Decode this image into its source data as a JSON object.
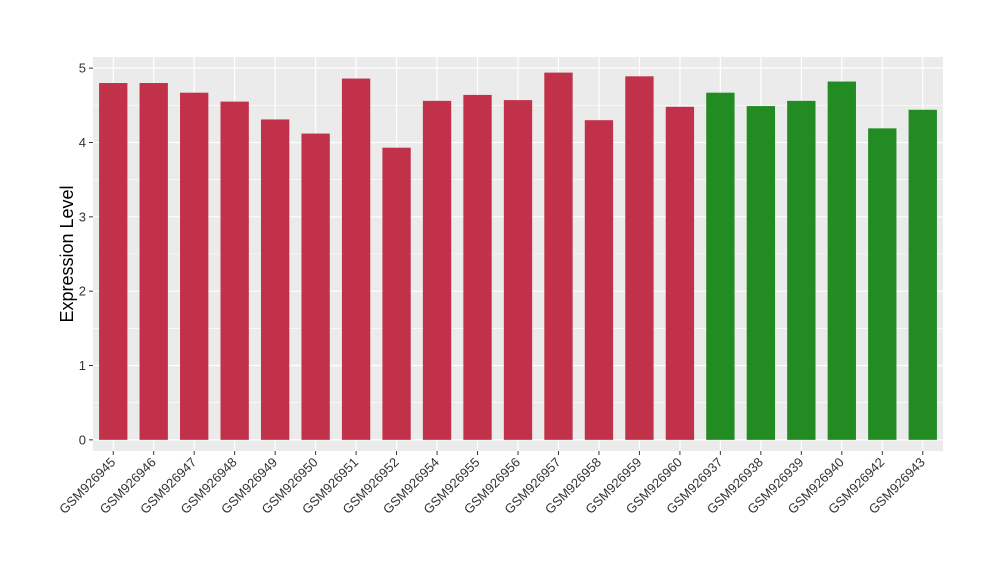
{
  "chart_data": {
    "type": "bar",
    "title": "",
    "xlabel": "",
    "ylabel": "Expression Level",
    "ylim": [
      -0.15,
      5.15
    ],
    "yticks": [
      0,
      1,
      2,
      3,
      4,
      5
    ],
    "grid": true,
    "legend": "none",
    "colors": {
      "panel_background": "#ebebeb",
      "grid": "#ffffff",
      "group_a": "#c2314a",
      "group_b": "#228b22"
    },
    "categories": [
      "GSM926945",
      "GSM926946",
      "GSM926947",
      "GSM926948",
      "GSM926949",
      "GSM926950",
      "GSM926951",
      "GSM926952",
      "GSM926954",
      "GSM926955",
      "GSM926956",
      "GSM926957",
      "GSM926958",
      "GSM926959",
      "GSM926960",
      "GSM926937",
      "GSM926938",
      "GSM926939",
      "GSM926940",
      "GSM926942",
      "GSM926943"
    ],
    "values": [
      4.8,
      4.8,
      4.67,
      4.55,
      4.31,
      4.12,
      4.86,
      3.93,
      4.56,
      4.64,
      4.57,
      4.94,
      4.3,
      4.89,
      4.48,
      4.67,
      4.49,
      4.56,
      4.82,
      4.19,
      4.44
    ],
    "bar_colors": [
      "#c2314a",
      "#c2314a",
      "#c2314a",
      "#c2314a",
      "#c2314a",
      "#c2314a",
      "#c2314a",
      "#c2314a",
      "#c2314a",
      "#c2314a",
      "#c2314a",
      "#c2314a",
      "#c2314a",
      "#c2314a",
      "#c2314a",
      "#228b22",
      "#228b22",
      "#228b22",
      "#228b22",
      "#228b22",
      "#228b22"
    ]
  }
}
